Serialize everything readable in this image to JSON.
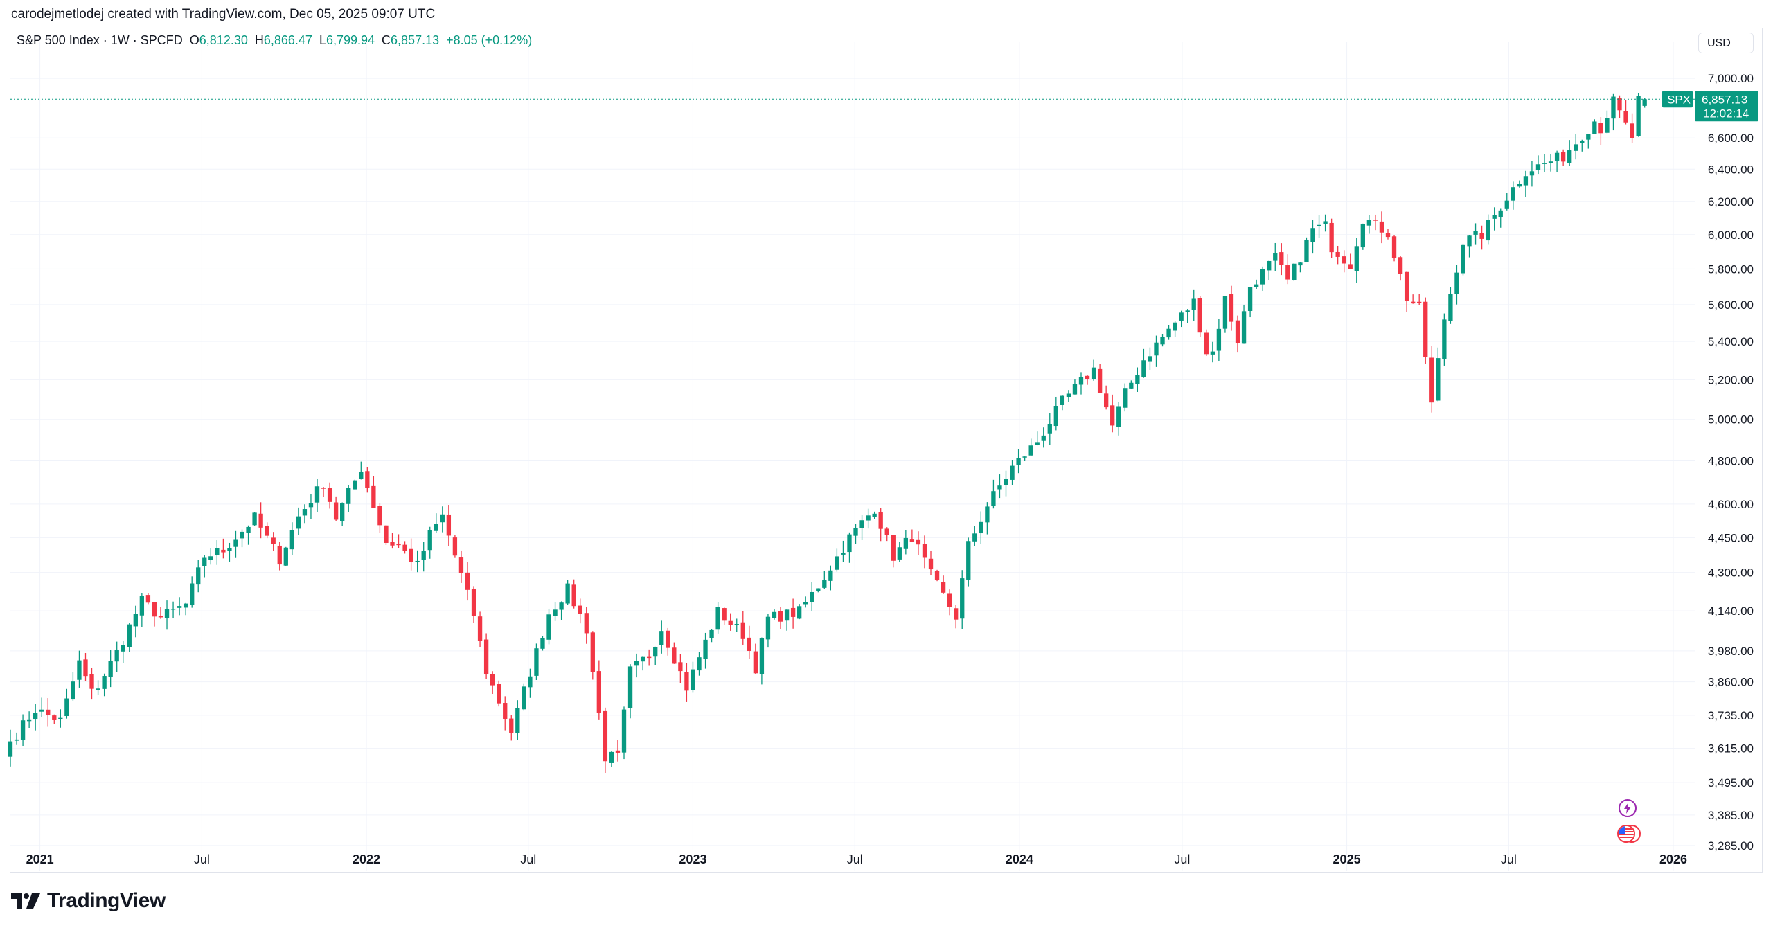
{
  "header": {
    "attribution": "carodejmetlodej created with TradingView.com, Dec 05, 2025 09:07 UTC"
  },
  "legend": {
    "symbol": "S&P 500 Index · 1W · SPCFD",
    "open_label": "O",
    "open": "6,812.30",
    "high_label": "H",
    "high": "6,866.47",
    "low_label": "L",
    "low": "6,799.94",
    "close_label": "C",
    "close": "6,857.13",
    "change": "+8.05 (+0.12%)"
  },
  "currency": "USD",
  "price_tag": {
    "ticker": "SPX",
    "price": "6,857.13",
    "countdown": "12:02:14"
  },
  "brand": {
    "name": "TradingView"
  },
  "colors": {
    "up": "#089981",
    "down": "#F23645",
    "grid": "#f0f3fa",
    "text": "#131722",
    "accent_purple": "#9c27b0"
  },
  "icons": [
    "lightning-event-icon",
    "us-flag-event-icon",
    "tradingview-logo-icon"
  ],
  "chart_data": {
    "type": "candlestick",
    "interval": "1W",
    "scale": "log",
    "y_ticks": [
      3285,
      3385,
      3495,
      3615,
      3735,
      3860,
      3980,
      4140,
      4300,
      4450,
      4600,
      4800,
      5000,
      5200,
      5400,
      5600,
      5800,
      6000,
      6200,
      6400,
      6600,
      7000
    ],
    "y_tick_labels": [
      "3,285.00",
      "3,385.00",
      "3,495.00",
      "3,615.00",
      "3,735.00",
      "3,860.00",
      "3,980.00",
      "4,140.00",
      "4,300.00",
      "4,450.00",
      "4,600.00",
      "4,800.00",
      "5,000.00",
      "5,200.00",
      "5,400.00",
      "5,600.00",
      "5,800.00",
      "6,000.00",
      "6,200.00",
      "6,400.00",
      "6,600.00",
      "7,000.00"
    ],
    "x_ticks": [
      {
        "label": "2021",
        "date": "2021-01-01",
        "major": true
      },
      {
        "label": "Jul",
        "date": "2021-07-01",
        "major": false
      },
      {
        "label": "2022",
        "date": "2022-01-01",
        "major": true
      },
      {
        "label": "Jul",
        "date": "2022-07-01",
        "major": false
      },
      {
        "label": "2023",
        "date": "2023-01-01",
        "major": true
      },
      {
        "label": "Jul",
        "date": "2023-07-01",
        "major": false
      },
      {
        "label": "2024",
        "date": "2024-01-01",
        "major": true
      },
      {
        "label": "Jul",
        "date": "2024-07-01",
        "major": false
      },
      {
        "label": "2025",
        "date": "2025-01-01",
        "major": true
      },
      {
        "label": "Jul",
        "date": "2025-07-01",
        "major": false
      },
      {
        "label": "2026",
        "date": "2026-01-01",
        "major": true
      }
    ],
    "anchors": [
      [
        "2020-11-29",
        3640
      ],
      [
        "2020-12-27",
        3756
      ],
      [
        "2021-01-24",
        3714
      ],
      [
        "2021-02-14",
        3934
      ],
      [
        "2021-03-01",
        3811
      ],
      [
        "2021-03-28",
        3974
      ],
      [
        "2021-04-25",
        4181
      ],
      [
        "2021-05-16",
        4113
      ],
      [
        "2021-06-13",
        4166
      ],
      [
        "2021-07-04",
        4369
      ],
      [
        "2021-07-25",
        4395
      ],
      [
        "2021-08-29",
        4537
      ],
      [
        "2021-09-26",
        4357
      ],
      [
        "2021-10-17",
        4544
      ],
      [
        "2021-11-14",
        4697
      ],
      [
        "2021-11-28",
        4538
      ],
      [
        "2021-12-26",
        4766
      ],
      [
        "2022-01-23",
        4431
      ],
      [
        "2022-02-06",
        4418
      ],
      [
        "2022-02-27",
        4328
      ],
      [
        "2022-03-13",
        4463
      ],
      [
        "2022-03-27",
        4546
      ],
      [
        "2022-05-01",
        4123
      ],
      [
        "2022-05-15",
        3901
      ],
      [
        "2022-06-12",
        3674
      ],
      [
        "2022-06-26",
        3825
      ],
      [
        "2022-07-24",
        4130
      ],
      [
        "2022-08-14",
        4228
      ],
      [
        "2022-09-04",
        4067
      ],
      [
        "2022-09-25",
        3585
      ],
      [
        "2022-10-09",
        3583
      ],
      [
        "2022-10-23",
        3901
      ],
      [
        "2022-11-13",
        3965
      ],
      [
        "2022-11-27",
        4071
      ],
      [
        "2022-12-25",
        3839
      ],
      [
        "2023-01-29",
        4136
      ],
      [
        "2023-02-26",
        4045
      ],
      [
        "2023-03-12",
        3916
      ],
      [
        "2023-03-26",
        4109
      ],
      [
        "2023-04-30",
        4136
      ],
      [
        "2023-05-28",
        4282
      ],
      [
        "2023-06-25",
        4450
      ],
      [
        "2023-07-23",
        4582
      ],
      [
        "2023-08-13",
        4369
      ],
      [
        "2023-09-03",
        4457
      ],
      [
        "2023-09-24",
        4288
      ],
      [
        "2023-10-22",
        4117
      ],
      [
        "2023-11-05",
        4415
      ],
      [
        "2023-11-26",
        4594
      ],
      [
        "2023-12-24",
        4770
      ],
      [
        "2024-01-21",
        4891
      ],
      [
        "2024-02-18",
        5088
      ],
      [
        "2024-03-24",
        5254
      ],
      [
        "2024-04-14",
        4967
      ],
      [
        "2024-04-28",
        5127
      ],
      [
        "2024-05-19",
        5304
      ],
      [
        "2024-06-16",
        5464
      ],
      [
        "2024-07-14",
        5615
      ],
      [
        "2024-07-28",
        5346
      ],
      [
        "2024-08-04",
        5344
      ],
      [
        "2024-08-18",
        5634
      ],
      [
        "2024-09-01",
        5408
      ],
      [
        "2024-09-15",
        5702
      ],
      [
        "2024-10-13",
        5864
      ],
      [
        "2024-10-27",
        5728
      ],
      [
        "2024-11-10",
        5870
      ],
      [
        "2024-11-24",
        6032
      ],
      [
        "2024-12-08",
        6051
      ],
      [
        "2024-12-15",
        5930
      ],
      [
        "2025-01-05",
        5827
      ],
      [
        "2025-01-19",
        6101
      ],
      [
        "2025-02-16",
        6013
      ],
      [
        "2025-03-09",
        5639
      ],
      [
        "2025-03-23",
        5580
      ],
      [
        "2025-04-06",
        5074
      ],
      [
        "2025-04-20",
        5525
      ],
      [
        "2025-05-11",
        5958
      ],
      [
        "2025-06-01",
        6000
      ],
      [
        "2025-06-22",
        6173
      ],
      [
        "2025-07-20",
        6389
      ],
      [
        "2025-08-31",
        6481
      ],
      [
        "2025-10-05",
        6715
      ],
      [
        "2025-10-12",
        6664
      ],
      [
        "2025-10-26",
        6840
      ],
      [
        "2025-11-16",
        6603
      ],
      [
        "2025-11-23",
        6849
      ],
      [
        "2025-11-30",
        6857.13
      ]
    ],
    "last": {
      "open": 6812.3,
      "high": 6866.47,
      "low": 6799.94,
      "close": 6857.13
    }
  }
}
